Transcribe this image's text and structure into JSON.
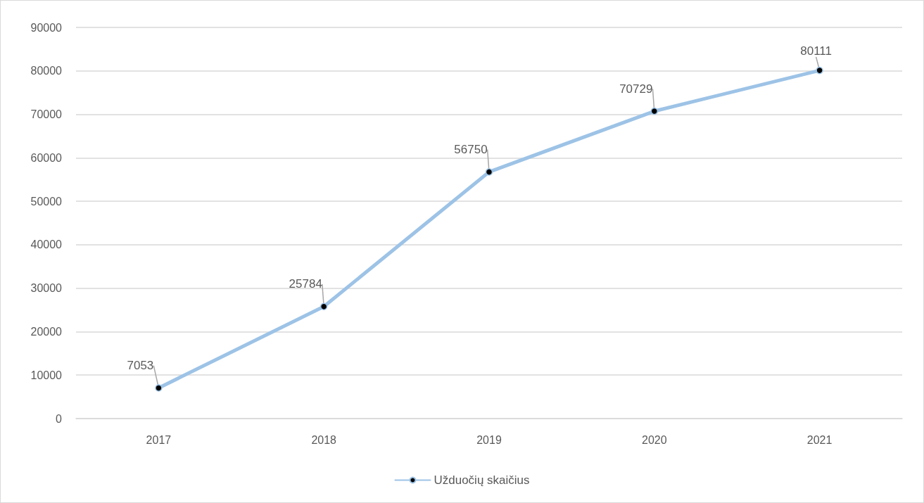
{
  "chart_data": {
    "type": "line",
    "categories": [
      "2017",
      "2018",
      "2019",
      "2020",
      "2021"
    ],
    "series": [
      {
        "name": "Užduočių skaičius",
        "color": "#9dc3e6",
        "values": [
          7053,
          25784,
          56750,
          70729,
          80111
        ]
      }
    ],
    "ylim": [
      0,
      90000
    ],
    "yticks": [
      0,
      10000,
      20000,
      30000,
      40000,
      50000,
      60000,
      70000,
      80000,
      90000
    ],
    "grid": "y",
    "legend": "bottom",
    "marker": "circle",
    "line_style": "solid",
    "data_labels": true
  }
}
